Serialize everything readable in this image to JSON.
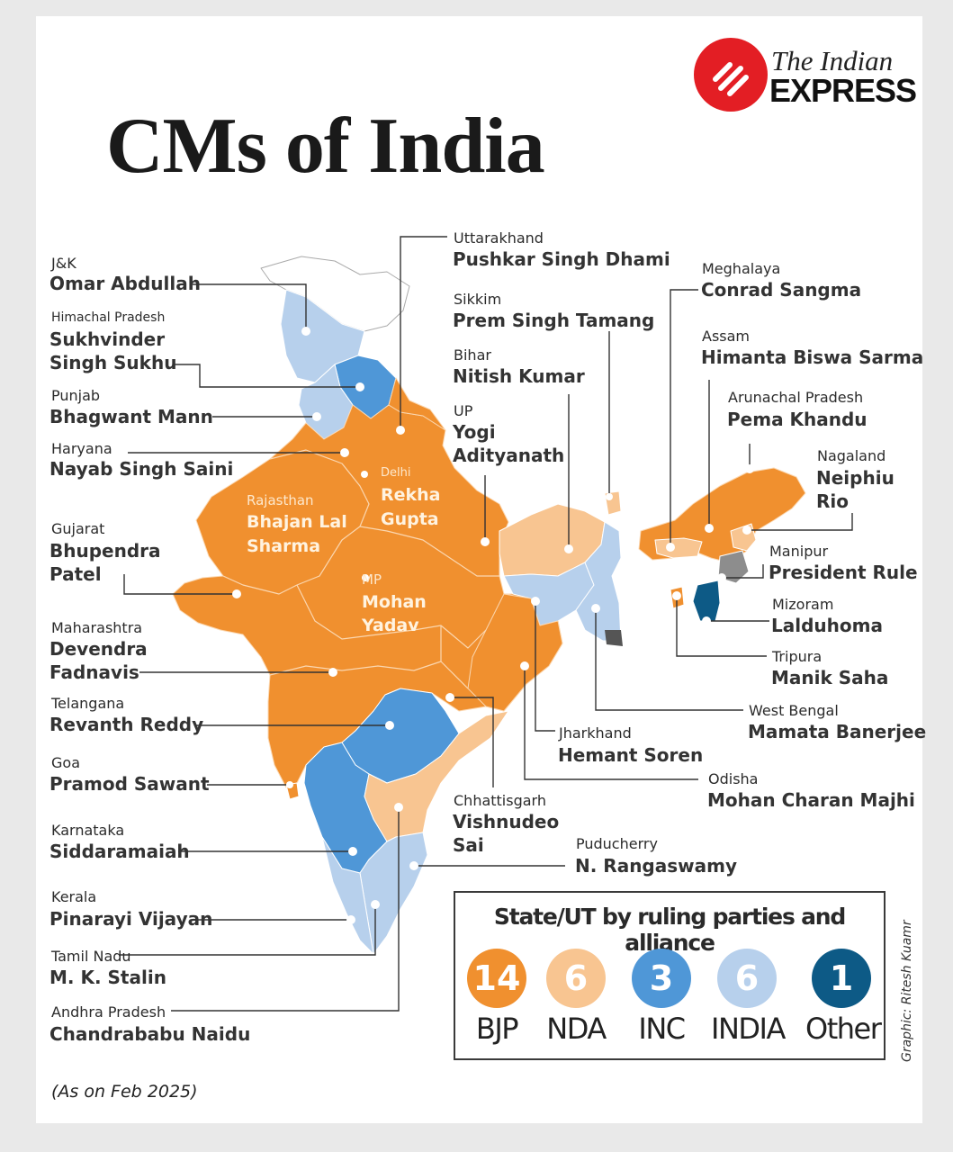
{
  "title": "CMs of India",
  "publisher": {
    "line1": "The Indian",
    "line2": "EXPRESS"
  },
  "as_of": "(As on Feb 2025)",
  "credit": "Graphic: Ritesh Kuamr",
  "colors": {
    "bjp": "#f0902f",
    "nda": "#f8c591",
    "inc": "#4f97d7",
    "india": "#b7d0ec",
    "other": "#0d5a86",
    "president_rule": "#8d8d8d",
    "unassigned": "#ffffff"
  },
  "labels": {
    "jk": {
      "state": "J&K",
      "cm": [
        "Omar Abdullah"
      ]
    },
    "hp": {
      "state": "Himachal Pradesh",
      "cm": [
        "Sukhvinder",
        "Singh Sukhu"
      ]
    },
    "punjab": {
      "state": "Punjab",
      "cm": [
        "Bhagwant Mann"
      ]
    },
    "haryana": {
      "state": "Haryana",
      "cm": [
        "Nayab Singh Saini"
      ]
    },
    "gujarat": {
      "state": "Gujarat",
      "cm": [
        "Bhupendra",
        "Patel"
      ]
    },
    "maharashtra": {
      "state": "Maharashtra",
      "cm": [
        "Devendra",
        "Fadnavis"
      ]
    },
    "telangana": {
      "state": "Telangana",
      "cm": [
        "Revanth Reddy"
      ]
    },
    "goa": {
      "state": "Goa",
      "cm": [
        "Pramod Sawant"
      ]
    },
    "karnataka": {
      "state": "Karnataka",
      "cm": [
        "Siddaramaiah"
      ]
    },
    "kerala": {
      "state": "Kerala",
      "cm": [
        "Pinarayi Vijayan"
      ]
    },
    "tn": {
      "state": "Tamil Nadu",
      "cm": [
        "M. K. Stalin"
      ]
    },
    "ap": {
      "state": "Andhra Pradesh",
      "cm": [
        "Chandrababu Naidu"
      ]
    },
    "uttarakhand": {
      "state": "Uttarakhand",
      "cm": [
        "Pushkar Singh Dhami"
      ]
    },
    "sikkim": {
      "state": "Sikkim",
      "cm": [
        "Prem Singh Tamang"
      ]
    },
    "bihar": {
      "state": "Bihar",
      "cm": [
        "Nitish Kumar"
      ]
    },
    "up": {
      "state": "UP",
      "cm": [
        "Yogi",
        "Adityanath"
      ]
    },
    "rajasthan": {
      "state": "Rajasthan",
      "cm": [
        "Bhajan Lal",
        "Sharma"
      ]
    },
    "delhi": {
      "state": "Delhi",
      "cm": [
        "Rekha",
        "Gupta"
      ]
    },
    "mp": {
      "state": "MP",
      "cm": [
        "Mohan",
        "Yadav"
      ]
    },
    "meghalaya": {
      "state": "Meghalaya",
      "cm": [
        "Conrad Sangma"
      ]
    },
    "assam": {
      "state": "Assam",
      "cm": [
        "Himanta Biswa Sarma"
      ]
    },
    "arunachal": {
      "state": "Arunachal Pradesh",
      "cm": [
        "Pema Khandu"
      ]
    },
    "nagaland": {
      "state": "Nagaland",
      "cm": [
        "Neiphiu",
        "Rio"
      ]
    },
    "manipur": {
      "state": "Manipur",
      "cm": [
        "President Rule"
      ]
    },
    "mizoram": {
      "state": "Mizoram",
      "cm": [
        "Lalduhoma"
      ]
    },
    "tripura": {
      "state": "Tripura",
      "cm": [
        "Manik Saha"
      ]
    },
    "wb": {
      "state": "West Bengal",
      "cm": [
        "Mamata Banerjee"
      ]
    },
    "jharkhand": {
      "state": "Jharkhand",
      "cm": [
        "Hemant Soren"
      ]
    },
    "odisha": {
      "state": "Odisha",
      "cm": [
        "Mohan Charan Majhi"
      ]
    },
    "chhattisgarh": {
      "state": "Chhattisgarh",
      "cm": [
        "Vishnudeo",
        "Sai"
      ]
    },
    "puducherry": {
      "state": "Puducherry",
      "cm": [
        "N. Rangaswamy"
      ]
    }
  },
  "legend": {
    "title": "State/UT by ruling parties and alliance",
    "items": [
      {
        "count": "14",
        "label": "BJP",
        "color": "#f0902f"
      },
      {
        "count": "6",
        "label": "NDA",
        "color": "#f8c591"
      },
      {
        "count": "3",
        "label": "INC",
        "color": "#4f97d7"
      },
      {
        "count": "6",
        "label": "INDIA",
        "color": "#b7d0ec"
      },
      {
        "count": "1",
        "label": "Other",
        "color": "#0d5a86"
      }
    ]
  }
}
